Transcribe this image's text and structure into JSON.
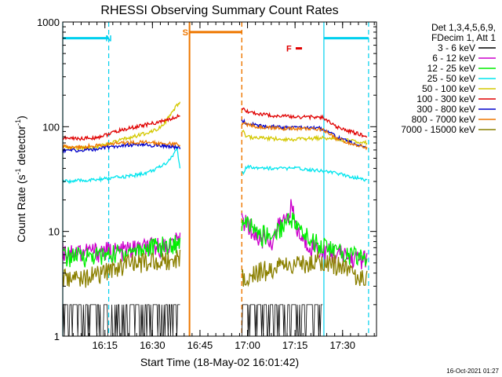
{
  "chart_data": {
    "type": "line",
    "title": "RHESSI Observing Summary Count Rates",
    "xlabel": "Start Time (18-May-02 16:01:42)",
    "ylabel_main": "Count Rate (s",
    "ylabel_sup1": "-1",
    "ylabel_mid": " detector",
    "ylabel_sup2": "-1",
    "ylabel_end": ")",
    "y_log": true,
    "ylim": [
      1,
      1000
    ],
    "xlim_minutes": [
      0,
      99
    ],
    "y_ticks": [
      "1",
      "10",
      "100",
      "1000"
    ],
    "x_ticks": [
      {
        "label": "16:15",
        "min": 13.3
      },
      {
        "label": "16:30",
        "min": 28.3
      },
      {
        "label": "16:45",
        "min": 43.3
      },
      {
        "label": "17:00",
        "min": 58.3
      },
      {
        "label": "17:15",
        "min": 73.3
      },
      {
        "label": "17:30",
        "min": 88.3
      }
    ],
    "legend_header": [
      "Det 1,3,4,5,6,9,",
      "FDecim 1, Att 1"
    ],
    "legend": [
      {
        "name": "3 - 6 keV",
        "color": "#000000"
      },
      {
        "name": "6 - 12 keV",
        "color": "#cc00cc"
      },
      {
        "name": "12 - 25 keV",
        "color": "#00ee00"
      },
      {
        "name": "25 - 50 keV",
        "color": "#00e5ee"
      },
      {
        "name": "50 - 100 keV",
        "color": "#d4c800"
      },
      {
        "name": "100 - 300 keV",
        "color": "#e00000"
      },
      {
        "name": "300 - 800 keV",
        "color": "#0000cc"
      },
      {
        "name": "800 - 7000 keV",
        "color": "#ee7700"
      },
      {
        "name": "7000 - 15000 keV",
        "color": "#8b8000"
      }
    ],
    "flags": [
      {
        "label": "N",
        "color": "#00d0ee",
        "start_min": 0,
        "end_min": 14.5,
        "y": 700
      },
      {
        "label": "N",
        "color": "#00d0ee",
        "start_min": 82.4,
        "end_min": 96.5,
        "y": 700
      },
      {
        "label": "S",
        "color": "#ee7700",
        "start_min": 40.0,
        "end_min": 56.5,
        "y": 800
      },
      {
        "label": "F",
        "color": "#e00000",
        "start_min": 73.5,
        "end_min": 75.5,
        "y": 560
      }
    ],
    "gaps_min": [
      [
        37.2,
        56.5
      ],
      [
        96.5,
        99
      ]
    ],
    "series": [
      {
        "name": "3 - 6 keV",
        "color": "#000000",
        "x": [
          0,
          14.5,
          15.5,
          36,
          37,
          57,
          57.5,
          80,
          82
        ],
        "y": [
          1,
          1,
          2,
          2,
          2,
          1,
          2,
          2,
          2
        ]
      },
      {
        "name": "6 - 12 keV",
        "color": "#cc00cc",
        "x": [
          0,
          10,
          14.5,
          18,
          22,
          26,
          30,
          34,
          36,
          37,
          57,
          60,
          62,
          64,
          66,
          68,
          70,
          72,
          74,
          76,
          78,
          80,
          82,
          84,
          86,
          88,
          90,
          92,
          94,
          96
        ],
        "y": [
          6.5,
          6.5,
          6.5,
          6.5,
          6.8,
          7.0,
          7.2,
          7.5,
          8.0,
          8.5,
          13.0,
          10.0,
          8.5,
          9.0,
          8.0,
          11.0,
          13.0,
          17.0,
          10.0,
          8.0,
          7.5,
          7.0,
          6.5,
          6.3,
          6.2,
          6.0,
          5.8,
          5.6,
          5.5,
          5.4
        ]
      },
      {
        "name": "12 - 25 keV",
        "color": "#00ee00",
        "x": [
          0,
          10,
          14.5,
          18,
          22,
          26,
          30,
          34,
          36,
          37,
          57,
          60,
          62,
          64,
          66,
          68,
          70,
          72,
          74,
          76,
          78,
          80,
          82,
          84,
          86,
          88,
          90,
          92,
          94,
          96
        ],
        "y": [
          5.8,
          5.9,
          6.0,
          6.3,
          6.6,
          7.0,
          7.2,
          7.4,
          7.8,
          8.2,
          12.0,
          11.0,
          9.0,
          9.5,
          9.0,
          10.5,
          12.0,
          14.0,
          11.0,
          9.5,
          8.5,
          8.0,
          7.5,
          7.0,
          6.6,
          6.3,
          6.0,
          5.9,
          5.8,
          5.6
        ]
      },
      {
        "name": "25 - 50 keV",
        "color": "#00e5ee",
        "x": [
          0,
          5,
          10,
          14.5,
          18,
          22,
          26,
          30,
          33,
          35,
          36,
          37,
          57,
          58,
          62,
          66,
          70,
          74,
          78,
          82,
          86,
          90,
          94,
          96
        ],
        "y": [
          30,
          30.5,
          31,
          32,
          33,
          34,
          36,
          40,
          46,
          54,
          62,
          40,
          36,
          41,
          41,
          40,
          40,
          40,
          39,
          38,
          36,
          34,
          32,
          31
        ]
      },
      {
        "name": "50 - 100 keV",
        "color": "#d4c800",
        "x": [
          0,
          5,
          10,
          14.5,
          18,
          22,
          26,
          30,
          32,
          34,
          36,
          37,
          57,
          58,
          62,
          66,
          70,
          74,
          78,
          82,
          86,
          90,
          94,
          96
        ],
        "y": [
          63,
          63,
          64,
          68,
          74,
          80,
          86,
          96,
          108,
          128,
          158,
          170,
          90,
          80,
          78,
          77,
          76,
          76,
          77,
          78,
          76,
          74,
          72,
          70
        ]
      },
      {
        "name": "100 - 300 keV",
        "color": "#e00000",
        "x": [
          0,
          5,
          10,
          14.5,
          18,
          22,
          26,
          30,
          32,
          34,
          36,
          37,
          57,
          58,
          62,
          66,
          70,
          74,
          78,
          82,
          84,
          86,
          90,
          94,
          96
        ],
        "y": [
          78,
          77,
          78,
          85,
          92,
          98,
          104,
          110,
          114,
          118,
          124,
          130,
          145,
          140,
          132,
          128,
          126,
          124,
          124,
          122,
          112,
          100,
          92,
          84,
          80
        ]
      },
      {
        "name": "300 - 800 keV",
        "color": "#0000cc",
        "x": [
          0,
          5,
          10,
          14.5,
          18,
          22,
          26,
          30,
          34,
          36,
          37,
          57,
          58,
          62,
          66,
          70,
          74,
          78,
          82,
          84,
          86,
          90,
          94,
          96
        ],
        "y": [
          60,
          59,
          61,
          64,
          66,
          67,
          67,
          66,
          65,
          64,
          62,
          114,
          108,
          102,
          100,
          98,
          98,
          98,
          96,
          90,
          80,
          72,
          66,
          62
        ]
      },
      {
        "name": "800 - 7000 keV",
        "color": "#ee7700",
        "x": [
          0,
          5,
          10,
          14.5,
          18,
          22,
          26,
          30,
          34,
          36,
          37,
          57,
          58,
          62,
          66,
          70,
          74,
          78,
          82,
          84,
          86,
          90,
          94,
          96
        ],
        "y": [
          65,
          64,
          66,
          68,
          70,
          71,
          71,
          70,
          69,
          68,
          66,
          110,
          104,
          100,
          98,
          96,
          96,
          96,
          94,
          88,
          78,
          70,
          65,
          63
        ]
      },
      {
        "name": "7000 - 15000 keV",
        "color": "#8b8000",
        "x": [
          0,
          5,
          10,
          14.5,
          18,
          22,
          26,
          30,
          34,
          36,
          37,
          57,
          60,
          64,
          68,
          72,
          76,
          80,
          84,
          88,
          92,
          96
        ],
        "y": [
          3.6,
          3.6,
          3.8,
          4.2,
          4.8,
          5.0,
          5.2,
          5.3,
          5.4,
          5.6,
          5.8,
          3.8,
          4.0,
          4.3,
          4.6,
          4.8,
          5.0,
          5.3,
          5.2,
          4.6,
          4.0,
          3.6
        ]
      }
    ]
  },
  "timestamp": "16-Oct-2021 01:27"
}
